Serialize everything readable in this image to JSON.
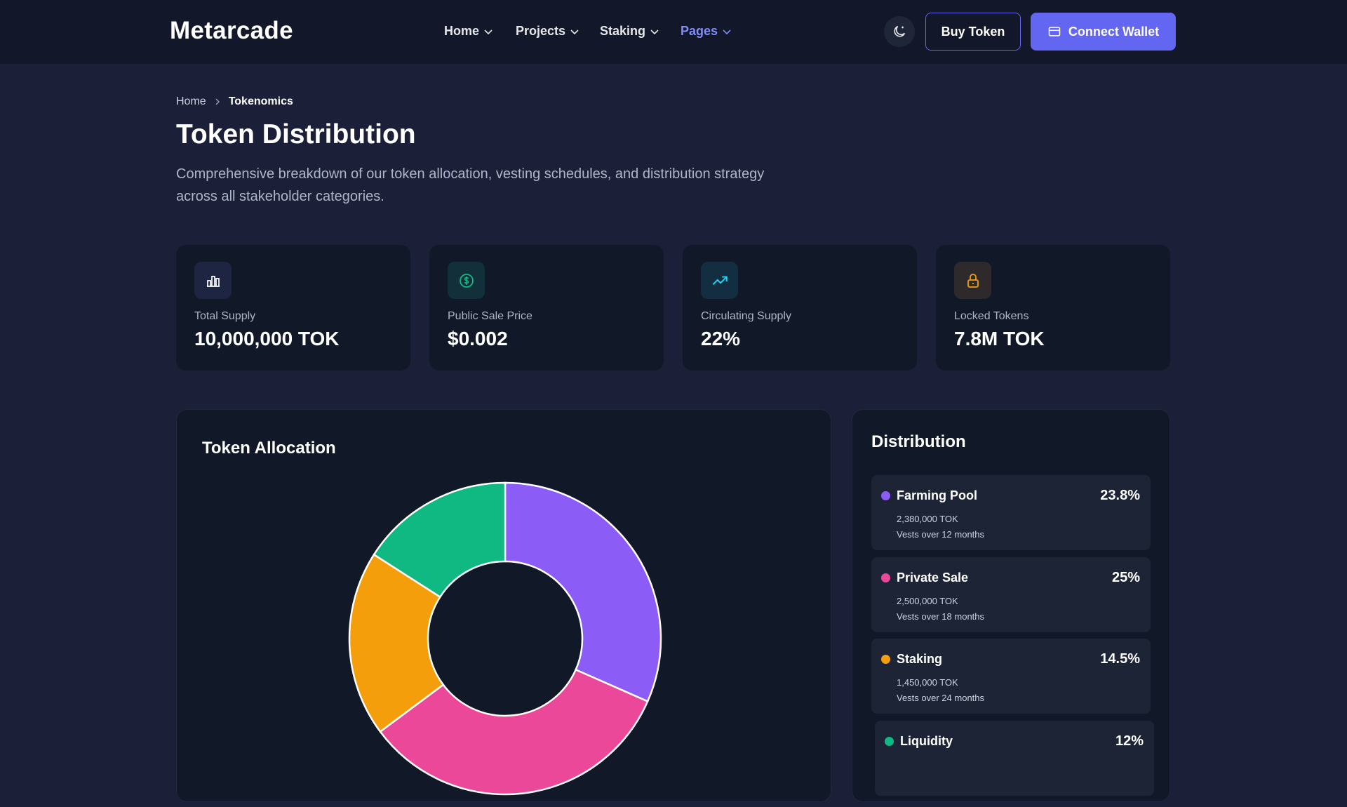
{
  "nav": {
    "logo": "Metarcade",
    "links": [
      "Home",
      "Projects",
      "Staking",
      "Pages"
    ],
    "buttons": [
      "Buy Token",
      "Connect Wallet"
    ]
  },
  "breadcrumb": [
    "Home",
    "Tokenomics"
  ],
  "header": {
    "title": "Token Distribution",
    "description": "Comprehensive breakdown of our token allocation, vesting schedules, and distribution strategy across all stakeholder categories."
  },
  "stats": [
    {
      "label": "Total Supply",
      "value": "10,000,000 TOK"
    },
    {
      "label": "Public Sale Price",
      "value": "$0.002"
    },
    {
      "label": "Circulating Supply",
      "value": "22%"
    },
    {
      "label": "Locked Tokens",
      "value": "7.8M TOK"
    }
  ],
  "chart_data": {
    "type": "donut",
    "title": "Token Allocation",
    "categories": [
      "Farming Pool",
      "Private Sale",
      "Staking",
      "Liquidity"
    ],
    "values": [
      23.8,
      25,
      14.5,
      12
    ],
    "value_labels": [
      "23.8%",
      "25%",
      "14.5%",
      "12%"
    ],
    "colors": [
      "#8b5cf6",
      "#ec4899",
      "#f59e0b",
      "#10b981"
    ]
  },
  "distribution": {
    "title": "Distribution",
    "items": [
      {
        "tokens": "2,380,000 TOK",
        "vesting": "Vests over 12 months"
      },
      {
        "tokens": "2,500,000 TOK",
        "vesting": "Vests over 18 months"
      },
      {
        "tokens": "1,450,000 TOK",
        "vesting": "Vests over 24 months"
      }
    ]
  }
}
